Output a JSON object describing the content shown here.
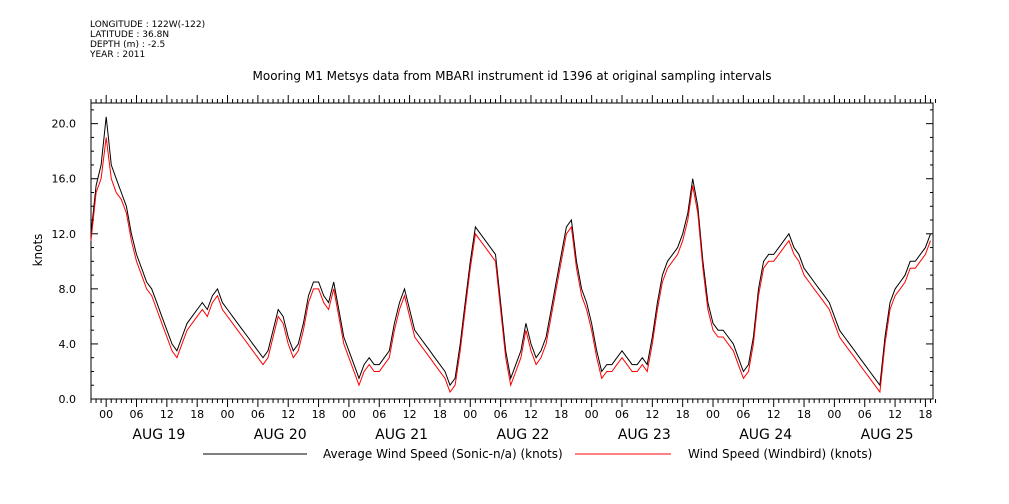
{
  "meta": {
    "longitude": "LONGITUDE : 122W(-122)",
    "latitude": "LATITUDE : 36.8N",
    "depth": "DEPTH (m) : -2.5",
    "year": "YEAR : 2011"
  },
  "chart_data": {
    "type": "line",
    "title": "Mooring M1 Metsys data from MBARI instrument id 1396 at original sampling intervals",
    "xlabel": "",
    "ylabel": "knots",
    "xlim": [
      -0.125,
      6.8125
    ],
    "ylim": [
      0,
      21.5
    ],
    "yticks": [
      0,
      4,
      8,
      12,
      16,
      20
    ],
    "ytick_labels": [
      "0.0",
      "4.0",
      "8.0",
      "12.0",
      "16.0",
      "20.0"
    ],
    "hour_ticks": [
      0,
      0.25,
      0.5,
      0.75
    ],
    "hour_tick_labels": [
      "00",
      "06",
      "12",
      "18"
    ],
    "day_labels": [
      "AUG 19",
      "AUG 20",
      "AUG 21",
      "AUG 22",
      "AUG 23",
      "AUG 24",
      "AUG 25"
    ],
    "grid": false,
    "legend": "bottom",
    "x_units": "days after AUG 19 00:00",
    "series": [
      {
        "name": "Average Wind Speed (Sonic-n/a) (knots)",
        "color": "#000000",
        "x": [
          -0.125,
          -0.083,
          -0.042,
          0.0,
          0.042,
          0.083,
          0.125,
          0.167,
          0.208,
          0.25,
          0.292,
          0.333,
          0.375,
          0.417,
          0.458,
          0.5,
          0.542,
          0.583,
          0.625,
          0.667,
          0.708,
          0.75,
          0.792,
          0.833,
          0.875,
          0.917,
          0.958,
          1.0,
          1.042,
          1.083,
          1.125,
          1.167,
          1.208,
          1.25,
          1.292,
          1.333,
          1.375,
          1.417,
          1.458,
          1.5,
          1.542,
          1.583,
          1.625,
          1.667,
          1.708,
          1.75,
          1.792,
          1.833,
          1.875,
          1.917,
          1.958,
          2.0,
          2.042,
          2.083,
          2.125,
          2.167,
          2.208,
          2.25,
          2.292,
          2.333,
          2.375,
          2.417,
          2.458,
          2.5,
          2.542,
          2.583,
          2.625,
          2.667,
          2.708,
          2.75,
          2.792,
          2.833,
          2.875,
          2.917,
          2.958,
          3.0,
          3.042,
          3.083,
          3.125,
          3.167,
          3.208,
          3.25,
          3.292,
          3.333,
          3.375,
          3.417,
          3.458,
          3.5,
          3.542,
          3.583,
          3.625,
          3.667,
          3.708,
          3.75,
          3.792,
          3.833,
          3.875,
          3.917,
          3.958,
          4.0,
          4.042,
          4.083,
          4.125,
          4.167,
          4.208,
          4.25,
          4.292,
          4.333,
          4.375,
          4.417,
          4.458,
          4.5,
          4.542,
          4.583,
          4.625,
          4.667,
          4.708,
          4.75,
          4.792,
          4.833,
          4.875,
          4.917,
          4.958,
          5.0,
          5.042,
          5.083,
          5.125,
          5.167,
          5.208,
          5.25,
          5.292,
          5.333,
          5.375,
          5.417,
          5.458,
          5.5,
          5.542,
          5.583,
          5.625,
          5.667,
          5.708,
          5.75,
          5.792,
          5.833,
          5.875,
          5.917,
          5.958,
          6.0,
          6.042,
          6.083,
          6.125,
          6.167,
          6.208,
          6.25,
          6.292,
          6.333,
          6.375,
          6.417,
          6.458,
          6.5,
          6.542,
          6.583,
          6.625,
          6.667,
          6.708,
          6.75,
          6.792
        ],
        "values": [
          12.0,
          15.5,
          17.0,
          20.5,
          17.0,
          16.0,
          15.0,
          14.0,
          12.0,
          10.5,
          9.5,
          8.5,
          8.0,
          7.0,
          6.0,
          5.0,
          4.0,
          3.5,
          4.5,
          5.5,
          6.0,
          6.5,
          7.0,
          6.5,
          7.5,
          8.0,
          7.0,
          6.5,
          6.0,
          5.5,
          5.0,
          4.5,
          4.0,
          3.5,
          3.0,
          3.5,
          5.0,
          6.5,
          6.0,
          4.5,
          3.5,
          4.0,
          5.5,
          7.5,
          8.5,
          8.5,
          7.5,
          7.0,
          8.5,
          6.5,
          4.5,
          3.5,
          2.5,
          1.5,
          2.5,
          3.0,
          2.5,
          2.5,
          3.0,
          3.5,
          5.5,
          7.0,
          8.0,
          6.5,
          5.0,
          4.5,
          4.0,
          3.5,
          3.0,
          2.5,
          2.0,
          1.0,
          1.5,
          4.0,
          7.0,
          10.0,
          12.5,
          12.0,
          11.5,
          11.0,
          10.5,
          7.0,
          3.5,
          1.5,
          2.5,
          3.5,
          5.5,
          4.0,
          3.0,
          3.5,
          4.5,
          6.5,
          8.5,
          10.5,
          12.5,
          13.0,
          10.0,
          8.0,
          7.0,
          5.5,
          3.5,
          2.0,
          2.5,
          2.5,
          3.0,
          3.5,
          3.0,
          2.5,
          2.5,
          3.0,
          2.5,
          4.5,
          7.0,
          9.0,
          10.0,
          10.5,
          11.0,
          12.0,
          13.5,
          16.0,
          14.0,
          10.0,
          7.0,
          5.5,
          5.0,
          5.0,
          4.5,
          4.0,
          3.0,
          2.0,
          2.5,
          4.5,
          8.0,
          10.0,
          10.5,
          10.5,
          11.0,
          11.5,
          12.0,
          11.0,
          10.5,
          9.5,
          9.0,
          8.5,
          8.0,
          7.5,
          7.0,
          6.0,
          5.0,
          4.5,
          4.0,
          3.5,
          3.0,
          2.5,
          2.0,
          1.5,
          1.0,
          4.5,
          7.0,
          8.0,
          8.5,
          9.0,
          10.0,
          10.0,
          10.5,
          11.0,
          12.0
        ]
      },
      {
        "name": "Wind Speed (Windbird) (knots)",
        "color": "#ff0000",
        "x": [
          -0.125,
          -0.083,
          -0.042,
          0.0,
          0.042,
          0.083,
          0.125,
          0.167,
          0.208,
          0.25,
          0.292,
          0.333,
          0.375,
          0.417,
          0.458,
          0.5,
          0.542,
          0.583,
          0.625,
          0.667,
          0.708,
          0.75,
          0.792,
          0.833,
          0.875,
          0.917,
          0.958,
          1.0,
          1.042,
          1.083,
          1.125,
          1.167,
          1.208,
          1.25,
          1.292,
          1.333,
          1.375,
          1.417,
          1.458,
          1.5,
          1.542,
          1.583,
          1.625,
          1.667,
          1.708,
          1.75,
          1.792,
          1.833,
          1.875,
          1.917,
          1.958,
          2.0,
          2.042,
          2.083,
          2.125,
          2.167,
          2.208,
          2.25,
          2.292,
          2.333,
          2.375,
          2.417,
          2.458,
          2.5,
          2.542,
          2.583,
          2.625,
          2.667,
          2.708,
          2.75,
          2.792,
          2.833,
          2.875,
          2.917,
          2.958,
          3.0,
          3.042,
          3.083,
          3.125,
          3.167,
          3.208,
          3.25,
          3.292,
          3.333,
          3.375,
          3.417,
          3.458,
          3.5,
          3.542,
          3.583,
          3.625,
          3.667,
          3.708,
          3.75,
          3.792,
          3.833,
          3.875,
          3.917,
          3.958,
          4.0,
          4.042,
          4.083,
          4.125,
          4.167,
          4.208,
          4.25,
          4.292,
          4.333,
          4.375,
          4.417,
          4.458,
          4.5,
          4.542,
          4.583,
          4.625,
          4.667,
          4.708,
          4.75,
          4.792,
          4.833,
          4.875,
          4.917,
          4.958,
          5.0,
          5.042,
          5.083,
          5.125,
          5.167,
          5.208,
          5.25,
          5.292,
          5.333,
          5.375,
          5.417,
          5.458,
          5.5,
          5.542,
          5.583,
          5.625,
          5.667,
          5.708,
          5.75,
          5.792,
          5.833,
          5.875,
          5.917,
          5.958,
          6.0,
          6.042,
          6.083,
          6.125,
          6.167,
          6.208,
          6.25,
          6.292,
          6.333,
          6.375,
          6.417,
          6.458,
          6.5,
          6.542,
          6.583,
          6.625,
          6.667,
          6.708,
          6.75,
          6.792
        ],
        "values": [
          11.5,
          15.0,
          16.0,
          19.0,
          16.0,
          15.0,
          14.5,
          13.5,
          11.5,
          10.0,
          9.0,
          8.0,
          7.5,
          6.5,
          5.5,
          4.5,
          3.5,
          3.0,
          4.0,
          5.0,
          5.5,
          6.0,
          6.5,
          6.0,
          7.0,
          7.5,
          6.5,
          6.0,
          5.5,
          5.0,
          4.5,
          4.0,
          3.5,
          3.0,
          2.5,
          3.0,
          4.5,
          6.0,
          5.5,
          4.0,
          3.0,
          3.5,
          5.0,
          7.0,
          8.0,
          8.0,
          7.0,
          6.5,
          8.0,
          6.0,
          4.0,
          3.0,
          2.0,
          1.0,
          2.0,
          2.5,
          2.0,
          2.0,
          2.5,
          3.0,
          5.0,
          6.5,
          7.5,
          6.0,
          4.5,
          4.0,
          3.5,
          3.0,
          2.5,
          2.0,
          1.5,
          0.5,
          1.0,
          3.5,
          6.5,
          9.5,
          12.0,
          11.5,
          11.0,
          10.5,
          10.0,
          6.5,
          3.0,
          1.0,
          2.0,
          3.0,
          5.0,
          3.5,
          2.5,
          3.0,
          4.0,
          6.0,
          8.0,
          10.0,
          12.0,
          12.5,
          9.5,
          7.5,
          6.5,
          5.0,
          3.0,
          1.5,
          2.0,
          2.0,
          2.5,
          3.0,
          2.5,
          2.0,
          2.0,
          2.5,
          2.0,
          4.0,
          6.5,
          8.5,
          9.5,
          10.0,
          10.5,
          11.5,
          13.0,
          15.5,
          13.5,
          9.5,
          6.5,
          5.0,
          4.5,
          4.5,
          4.0,
          3.5,
          2.5,
          1.5,
          2.0,
          4.0,
          7.5,
          9.5,
          10.0,
          10.0,
          10.5,
          11.0,
          11.5,
          10.5,
          10.0,
          9.0,
          8.5,
          8.0,
          7.5,
          7.0,
          6.5,
          5.5,
          4.5,
          4.0,
          3.5,
          3.0,
          2.5,
          2.0,
          1.5,
          1.0,
          0.5,
          4.0,
          6.5,
          7.5,
          8.0,
          8.5,
          9.5,
          9.5,
          10.0,
          10.5,
          11.5
        ]
      }
    ]
  }
}
